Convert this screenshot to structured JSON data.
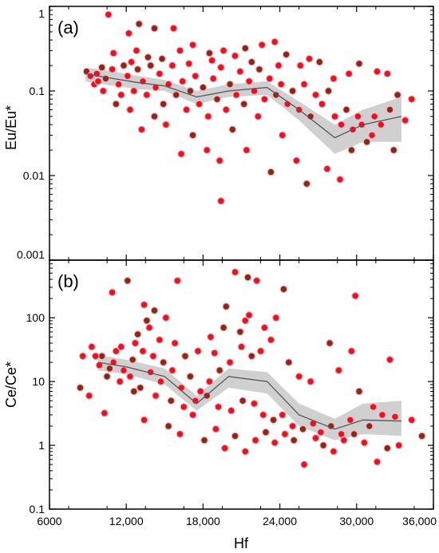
{
  "chart_data": [
    {
      "type": "scatter",
      "panel_label": "(a)",
      "ylabel": "Eu/Eu*",
      "xlabel": "",
      "yscale": "log",
      "xlim": [
        6000,
        36000
      ],
      "ylim": [
        0.001,
        1
      ],
      "y_ticks": [
        0.001,
        0.01,
        0.1,
        1
      ],
      "y_tick_labels": [
        "0.001",
        "0.01",
        "0.1",
        "1"
      ],
      "point_color_primary": "#e8141c",
      "point_color_secondary": "#8b2a10",
      "band_color": "#c8c8c8",
      "line_color": "#555555",
      "trend_line": {
        "x": [
          8800,
          11000,
          13000,
          15000,
          17500,
          20000,
          23000,
          25500,
          28300,
          30500,
          33500
        ],
        "y": [
          0.16,
          0.14,
          0.125,
          0.115,
          0.085,
          0.1,
          0.11,
          0.06,
          0.028,
          0.04,
          0.05
        ]
      },
      "band": {
        "x": [
          8800,
          11000,
          13000,
          15000,
          17500,
          20000,
          23000,
          25500,
          28300,
          30500,
          33500
        ],
        "lower": [
          0.13,
          0.115,
          0.105,
          0.1,
          0.07,
          0.085,
          0.09,
          0.045,
          0.018,
          0.025,
          0.025
        ],
        "upper": [
          0.19,
          0.17,
          0.15,
          0.135,
          0.1,
          0.12,
          0.13,
          0.075,
          0.04,
          0.06,
          0.085
        ]
      },
      "points": [
        [
          10600,
          0.8
        ],
        [
          13000,
          0.62
        ],
        [
          15700,
          0.55
        ],
        [
          12200,
          0.48
        ],
        [
          14200,
          0.55
        ],
        [
          11000,
          0.28
        ],
        [
          12800,
          0.3
        ],
        [
          13700,
          0.25
        ],
        [
          16200,
          0.3
        ],
        [
          17200,
          0.35
        ],
        [
          18500,
          0.28
        ],
        [
          19600,
          0.3
        ],
        [
          20500,
          0.26
        ],
        [
          21300,
          0.32
        ],
        [
          22600,
          0.35
        ],
        [
          23600,
          0.38
        ],
        [
          24500,
          0.27
        ],
        [
          25600,
          0.2
        ],
        [
          26300,
          0.24
        ],
        [
          27100,
          0.22
        ],
        [
          28200,
          0.14
        ],
        [
          29400,
          0.16
        ],
        [
          30200,
          0.21
        ],
        [
          31600,
          0.17
        ],
        [
          32400,
          0.16
        ],
        [
          33200,
          0.09
        ],
        [
          34300,
          0.08
        ],
        [
          33800,
          0.045
        ],
        [
          32900,
          0.02
        ],
        [
          31200,
          0.03
        ],
        [
          30100,
          0.05
        ],
        [
          29600,
          0.02
        ],
        [
          28700,
          0.009
        ],
        [
          27700,
          0.012
        ],
        [
          26100,
          0.008
        ],
        [
          25300,
          0.015
        ],
        [
          24200,
          0.03
        ],
        [
          23300,
          0.011
        ],
        [
          22300,
          0.05
        ],
        [
          21400,
          0.02
        ],
        [
          20300,
          0.035
        ],
        [
          19300,
          0.015
        ],
        [
          18300,
          0.02
        ],
        [
          17200,
          0.03
        ],
        [
          16300,
          0.018
        ],
        [
          15100,
          0.04
        ],
        [
          14200,
          0.05
        ],
        [
          13200,
          0.035
        ],
        [
          12300,
          0.06
        ],
        [
          11200,
          0.07
        ],
        [
          10200,
          0.1
        ],
        [
          9500,
          0.12
        ],
        [
          8900,
          0.17
        ],
        [
          9200,
          0.15
        ],
        [
          9700,
          0.16
        ],
        [
          10400,
          0.14
        ],
        [
          10900,
          0.18
        ],
        [
          11400,
          0.12
        ],
        [
          11800,
          0.2
        ],
        [
          12100,
          0.15
        ],
        [
          12600,
          0.1
        ],
        [
          12900,
          0.18
        ],
        [
          13300,
          0.13
        ],
        [
          13600,
          0.09
        ],
        [
          13900,
          0.2
        ],
        [
          14300,
          0.11
        ],
        [
          14600,
          0.16
        ],
        [
          14900,
          0.07
        ],
        [
          15300,
          0.12
        ],
        [
          15600,
          0.2
        ],
        [
          15900,
          0.09
        ],
        [
          16400,
          0.13
        ],
        [
          16700,
          0.06
        ],
        [
          17000,
          0.1
        ],
        [
          17400,
          0.15
        ],
        [
          17700,
          0.07
        ],
        [
          18000,
          0.11
        ],
        [
          18400,
          0.05
        ],
        [
          18800,
          0.14
        ],
        [
          19100,
          0.08
        ],
        [
          19400,
          0.19
        ],
        [
          19800,
          0.06
        ],
        [
          20100,
          0.12
        ],
        [
          20600,
          0.09
        ],
        [
          20900,
          0.17
        ],
        [
          21200,
          0.07
        ],
        [
          21600,
          0.13
        ],
        [
          22000,
          0.1
        ],
        [
          22400,
          0.18
        ],
        [
          22800,
          0.08
        ],
        [
          23200,
          0.14
        ],
        [
          23700,
          0.09
        ],
        [
          24100,
          0.12
        ],
        [
          24600,
          0.07
        ],
        [
          25000,
          0.1
        ],
        [
          25500,
          0.06
        ],
        [
          25900,
          0.12
        ],
        [
          26400,
          0.05
        ],
        [
          26800,
          0.09
        ],
        [
          27300,
          0.07
        ],
        [
          27800,
          0.1
        ],
        [
          28300,
          0.05
        ],
        [
          28800,
          0.04
        ],
        [
          29200,
          0.06
        ],
        [
          29700,
          0.035
        ],
        [
          30400,
          0.04
        ],
        [
          30800,
          0.025
        ],
        [
          31400,
          0.05
        ],
        [
          31900,
          0.04
        ],
        [
          32600,
          0.06
        ],
        [
          19400,
          0.005
        ],
        [
          9800,
          0.13
        ],
        [
          10100,
          0.19
        ],
        [
          11600,
          0.09
        ],
        [
          12400,
          0.22
        ],
        [
          14800,
          0.24
        ],
        [
          16900,
          0.21
        ],
        [
          18700,
          0.23
        ],
        [
          21800,
          0.22
        ],
        [
          23900,
          0.2
        ]
      ]
    },
    {
      "type": "scatter",
      "panel_label": "(b)",
      "ylabel": "Ce/Ce*",
      "xlabel": "Hf",
      "yscale": "log",
      "xlim": [
        6000,
        36000
      ],
      "ylim": [
        0.1,
        800
      ],
      "x_ticks": [
        6000,
        12000,
        18000,
        24000,
        30000,
        36000
      ],
      "x_tick_labels": [
        "6000",
        "12,000",
        "18,000",
        "24,000",
        "30,000",
        "36,000"
      ],
      "y_ticks": [
        0.1,
        1,
        10,
        100
      ],
      "y_tick_labels": [
        "0.1",
        "1",
        "10",
        "100"
      ],
      "point_color_primary": "#e8141c",
      "point_color_secondary": "#8b2a10",
      "band_color": "#c8c8c8",
      "line_color": "#555555",
      "trend_line": {
        "x": [
          9800,
          12000,
          15000,
          17500,
          20000,
          23000,
          25500,
          28300,
          30500,
          33500
        ],
        "y": [
          20,
          17,
          12,
          4.5,
          12,
          10,
          3,
          1.8,
          2.5,
          2.4
        ]
      },
      "band": {
        "x": [
          9800,
          12000,
          15000,
          17500,
          20000,
          23000,
          25500,
          28300,
          30500,
          33500
        ],
        "lower": [
          15,
          13,
          9,
          3.5,
          8,
          6.5,
          2.0,
          1.2,
          1.5,
          1.4
        ],
        "upper": [
          26,
          22,
          16,
          6,
          16,
          14,
          4.5,
          2.6,
          4.5,
          5
        ]
      },
      "points": [
        [
          10900,
          250
        ],
        [
          12100,
          380
        ],
        [
          16000,
          380
        ],
        [
          20500,
          520
        ],
        [
          21500,
          430
        ],
        [
          22200,
          380
        ],
        [
          13400,
          160
        ],
        [
          14200,
          130
        ],
        [
          15100,
          100
        ],
        [
          13800,
          70
        ],
        [
          19800,
          150
        ],
        [
          21300,
          90
        ],
        [
          22800,
          70
        ],
        [
          24300,
          280
        ],
        [
          29900,
          220
        ],
        [
          23700,
          100
        ],
        [
          20900,
          60
        ],
        [
          18600,
          50
        ],
        [
          17600,
          30
        ],
        [
          16600,
          25
        ],
        [
          12700,
          40
        ],
        [
          11200,
          30
        ],
        [
          10100,
          25
        ],
        [
          9300,
          35
        ],
        [
          8600,
          25
        ],
        [
          8400,
          8
        ],
        [
          9100,
          6
        ],
        [
          10300,
          3.2
        ],
        [
          12600,
          7
        ],
        [
          13400,
          2.5
        ],
        [
          14300,
          6
        ],
        [
          15300,
          2
        ],
        [
          16200,
          1.5
        ],
        [
          17200,
          3
        ],
        [
          18100,
          1.2
        ],
        [
          19000,
          1.8
        ],
        [
          19700,
          0.9
        ],
        [
          20500,
          1.4
        ],
        [
          21300,
          0.8
        ],
        [
          22100,
          1.2
        ],
        [
          22900,
          1.6
        ],
        [
          23600,
          1.1
        ],
        [
          24400,
          1.5
        ],
        [
          25100,
          1.2
        ],
        [
          25900,
          0.5
        ],
        [
          26800,
          1.3
        ],
        [
          27400,
          1.0
        ],
        [
          28200,
          0.8
        ],
        [
          29000,
          1.2
        ],
        [
          29800,
          1.5
        ],
        [
          30600,
          1.1
        ],
        [
          31600,
          0.55
        ],
        [
          32400,
          0.9
        ],
        [
          33300,
          1.0
        ],
        [
          34300,
          2.5
        ],
        [
          35100,
          1.4
        ],
        [
          32600,
          22
        ],
        [
          31300,
          4
        ],
        [
          30200,
          7
        ],
        [
          29600,
          30
        ],
        [
          28600,
          15
        ],
        [
          27900,
          40
        ],
        [
          26400,
          10
        ],
        [
          25500,
          12
        ],
        [
          24700,
          20
        ],
        [
          23300,
          45
        ],
        [
          22500,
          30
        ],
        [
          21800,
          25
        ],
        [
          21000,
          35
        ],
        [
          20100,
          20
        ],
        [
          19300,
          15
        ],
        [
          18500,
          10
        ],
        [
          17800,
          7
        ],
        [
          17000,
          12
        ],
        [
          16300,
          8
        ],
        [
          15600,
          15
        ],
        [
          14900,
          20
        ],
        [
          14100,
          25
        ],
        [
          13300,
          30
        ],
        [
          12500,
          22
        ],
        [
          11800,
          15
        ],
        [
          11000,
          20
        ],
        [
          10500,
          12
        ],
        [
          9900,
          18
        ],
        [
          9600,
          25
        ],
        [
          10700,
          16
        ],
        [
          11500,
          10
        ],
        [
          12300,
          12
        ],
        [
          13100,
          8
        ],
        [
          13900,
          14
        ],
        [
          14700,
          10
        ],
        [
          15500,
          5
        ],
        [
          16500,
          4
        ],
        [
          17400,
          5
        ],
        [
          18300,
          6
        ],
        [
          19200,
          4
        ],
        [
          20200,
          3.5
        ],
        [
          21100,
          5
        ],
        [
          22000,
          4.5
        ],
        [
          22700,
          3
        ],
        [
          23500,
          2.5
        ],
        [
          24200,
          3
        ],
        [
          25000,
          2
        ],
        [
          25800,
          1.8
        ],
        [
          26600,
          2.2
        ],
        [
          27200,
          1.6
        ],
        [
          28000,
          2
        ],
        [
          28800,
          1.5
        ],
        [
          29500,
          2.5
        ],
        [
          31000,
          2
        ],
        [
          32000,
          3
        ],
        [
          33000,
          2.8
        ],
        [
          12900,
          55
        ],
        [
          14600,
          45
        ],
        [
          11600,
          35
        ],
        [
          19600,
          70
        ],
        [
          21600,
          110
        ],
        [
          15800,
          40
        ],
        [
          13600,
          90
        ],
        [
          18900,
          28
        ]
      ]
    }
  ]
}
